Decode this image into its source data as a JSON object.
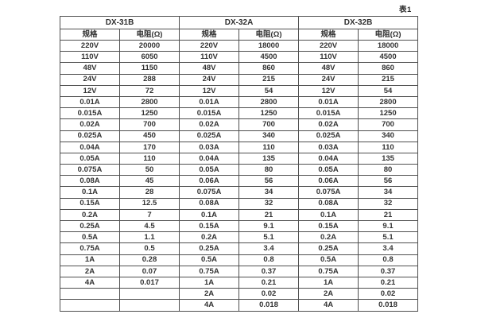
{
  "caption": "表1",
  "columns_header": {
    "spec": "规格",
    "resistance": "电阻(Ω)"
  },
  "groups": [
    {
      "name": "DX-31B",
      "rows": [
        [
          "220V",
          "20000"
        ],
        [
          "110V",
          "6050"
        ],
        [
          "48V",
          "1150"
        ],
        [
          "24V",
          "288"
        ],
        [
          "12V",
          "72"
        ],
        [
          "0.01A",
          "2800"
        ],
        [
          "0.015A",
          "1250"
        ],
        [
          "0.02A",
          "700"
        ],
        [
          "0.025A",
          "450"
        ],
        [
          "0.04A",
          "170"
        ],
        [
          "0.05A",
          "110"
        ],
        [
          "0.075A",
          "50"
        ],
        [
          "0.08A",
          "45"
        ],
        [
          "0.1A",
          "28"
        ],
        [
          "0.15A",
          "12.5"
        ],
        [
          "0.2A",
          "7"
        ],
        [
          "0.25A",
          "4.5"
        ],
        [
          "0.5A",
          "1.1"
        ],
        [
          "0.75A",
          "0.5"
        ],
        [
          "1A",
          "0.28"
        ],
        [
          "2A",
          "0.07"
        ],
        [
          "4A",
          "0.017"
        ],
        [
          "",
          ""
        ],
        [
          "",
          ""
        ]
      ]
    },
    {
      "name": "DX-32A",
      "rows": [
        [
          "220V",
          "18000"
        ],
        [
          "110V",
          "4500"
        ],
        [
          "48V",
          "860"
        ],
        [
          "24V",
          "215"
        ],
        [
          "12V",
          "54"
        ],
        [
          "0.01A",
          "2800"
        ],
        [
          "0.015A",
          "1250"
        ],
        [
          "0.02A",
          "700"
        ],
        [
          "0.025A",
          "340"
        ],
        [
          "0.03A",
          "110"
        ],
        [
          "0.04A",
          "135"
        ],
        [
          "0.05A",
          "80"
        ],
        [
          "0.06A",
          "56"
        ],
        [
          "0.075A",
          "34"
        ],
        [
          "0.08A",
          "32"
        ],
        [
          "0.1A",
          "21"
        ],
        [
          "0.15A",
          "9.1"
        ],
        [
          "0.2A",
          "5.1"
        ],
        [
          "0.25A",
          "3.4"
        ],
        [
          "0.5A",
          "0.8"
        ],
        [
          "0.75A",
          "0.37"
        ],
        [
          "1A",
          "0.21"
        ],
        [
          "2A",
          "0.02"
        ],
        [
          "4A",
          "0.018"
        ]
      ]
    },
    {
      "name": "DX-32B",
      "rows": [
        [
          "220V",
          "18000"
        ],
        [
          "110V",
          "4500"
        ],
        [
          "48V",
          "860"
        ],
        [
          "24V",
          "215"
        ],
        [
          "12V",
          "54"
        ],
        [
          "0.01A",
          "2800"
        ],
        [
          "0.015A",
          "1250"
        ],
        [
          "0.02A",
          "700"
        ],
        [
          "0.025A",
          "340"
        ],
        [
          "0.03A",
          "110"
        ],
        [
          "0.04A",
          "135"
        ],
        [
          "0.05A",
          "80"
        ],
        [
          "0.06A",
          "56"
        ],
        [
          "0.075A",
          "34"
        ],
        [
          "0.08A",
          "32"
        ],
        [
          "0.1A",
          "21"
        ],
        [
          "0.15A",
          "9.1"
        ],
        [
          "0.2A",
          "5.1"
        ],
        [
          "0.25A",
          "3.4"
        ],
        [
          "0.5A",
          "0.8"
        ],
        [
          "0.75A",
          "0.37"
        ],
        [
          "1A",
          "0.21"
        ],
        [
          "2A",
          "0.02"
        ],
        [
          "4A",
          "0.018"
        ]
      ]
    }
  ]
}
